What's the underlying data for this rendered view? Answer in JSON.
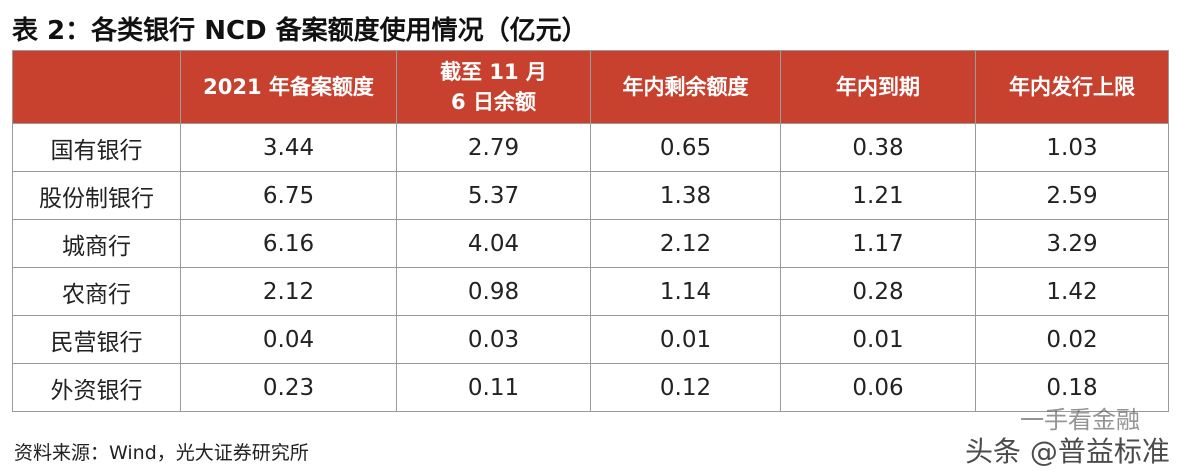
{
  "header": {
    "title": "表 2：各类银行 NCD 备案额度使用情况（亿元）"
  },
  "table": {
    "columns": [
      "2021 年备案额度",
      "截至 11 月 6 日余额",
      "年内剩余额度",
      "年内到期",
      "年内发行上限"
    ],
    "rows": [
      [
        "国有银行",
        "3.44",
        "2.79",
        "0.65",
        "0.38",
        "1.03"
      ],
      [
        "股份制银行",
        "6.75",
        "5.37",
        "1.38",
        "1.21",
        "2.59"
      ],
      [
        "城商行",
        "6.16",
        "4.04",
        "2.12",
        "1.17",
        "3.29"
      ],
      [
        "农商行",
        "2.12",
        "0.98",
        "1.14",
        "0.28",
        "1.42"
      ],
      [
        "民营银行",
        "0.04",
        "0.03",
        "0.01",
        "0.01",
        "0.02"
      ],
      [
        "外资银行",
        "0.23",
        "0.11",
        "0.12",
        "0.06",
        "0.18"
      ]
    ]
  },
  "footer": {
    "source": "资料来源：Wind，光大证券研究所"
  },
  "watermark": {
    "line1": "一手看金融",
    "line2": "头条 @普益标准"
  }
}
